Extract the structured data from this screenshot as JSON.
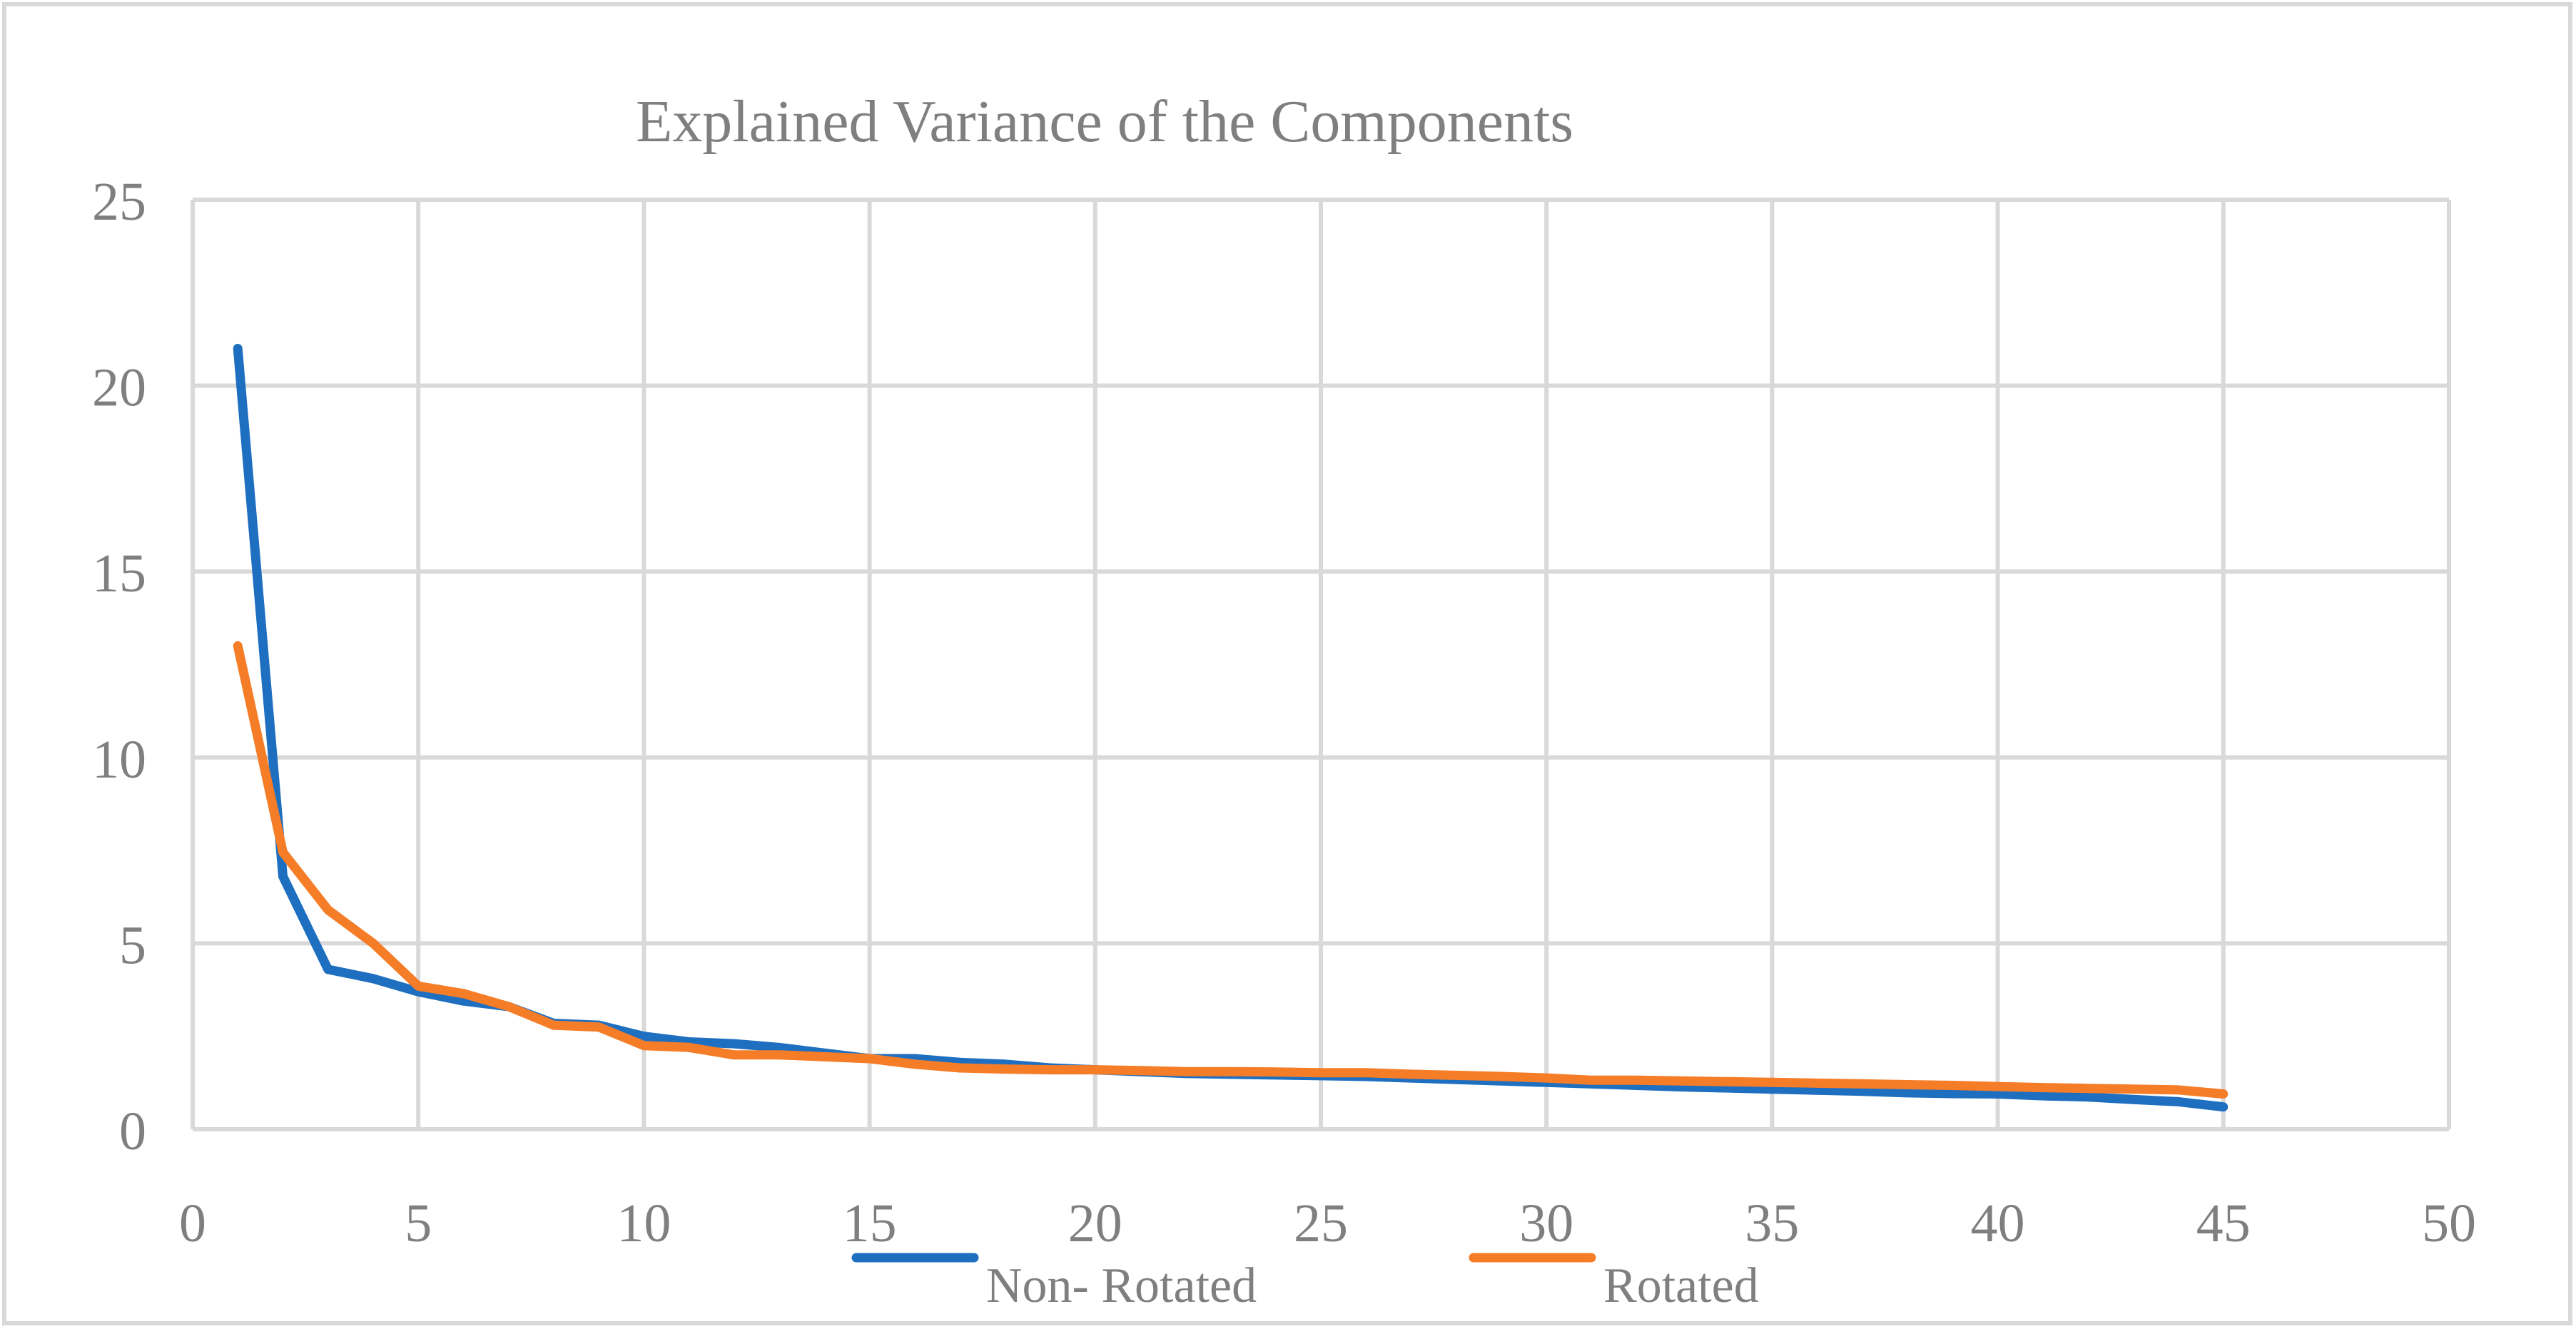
{
  "chart_data": {
    "type": "line",
    "title": "Explained Variance of the Components",
    "xlabel": "",
    "ylabel": "",
    "xlim": [
      0,
      50
    ],
    "ylim": [
      0,
      25
    ],
    "x_ticks": [
      0,
      5,
      10,
      15,
      20,
      25,
      30,
      35,
      40,
      45,
      50
    ],
    "y_ticks": [
      0,
      5,
      10,
      15,
      20,
      25
    ],
    "grid": true,
    "legend_position": "bottom",
    "x": [
      1,
      2,
      3,
      4,
      5,
      6,
      7,
      8,
      9,
      10,
      11,
      12,
      13,
      14,
      15,
      16,
      17,
      18,
      19,
      20,
      21,
      22,
      23,
      24,
      25,
      26,
      27,
      28,
      29,
      30,
      31,
      32,
      33,
      34,
      35,
      36,
      37,
      38,
      39,
      40,
      41,
      42,
      43,
      44,
      45
    ],
    "series": [
      {
        "name": "Non- Rotated",
        "color": "#1f6fc0",
        "values": [
          21.0,
          6.8,
          4.3,
          4.05,
          3.7,
          3.45,
          3.3,
          2.85,
          2.8,
          2.5,
          2.35,
          2.3,
          2.2,
          2.05,
          1.9,
          1.9,
          1.8,
          1.75,
          1.65,
          1.6,
          1.55,
          1.5,
          1.48,
          1.46,
          1.44,
          1.42,
          1.38,
          1.34,
          1.3,
          1.26,
          1.22,
          1.18,
          1.14,
          1.11,
          1.08,
          1.05,
          1.02,
          0.98,
          0.96,
          0.95,
          0.9,
          0.87,
          0.8,
          0.74,
          0.6
        ]
      },
      {
        "name": "Rotated",
        "color": "#f57d28",
        "values": [
          13.0,
          7.45,
          5.9,
          5.0,
          3.85,
          3.65,
          3.3,
          2.8,
          2.75,
          2.25,
          2.2,
          2.0,
          2.0,
          1.95,
          1.9,
          1.75,
          1.65,
          1.62,
          1.6,
          1.6,
          1.58,
          1.55,
          1.55,
          1.54,
          1.52,
          1.52,
          1.48,
          1.45,
          1.42,
          1.38,
          1.32,
          1.32,
          1.3,
          1.28,
          1.26,
          1.24,
          1.22,
          1.2,
          1.18,
          1.15,
          1.12,
          1.1,
          1.08,
          1.06,
          0.95
        ]
      }
    ]
  }
}
